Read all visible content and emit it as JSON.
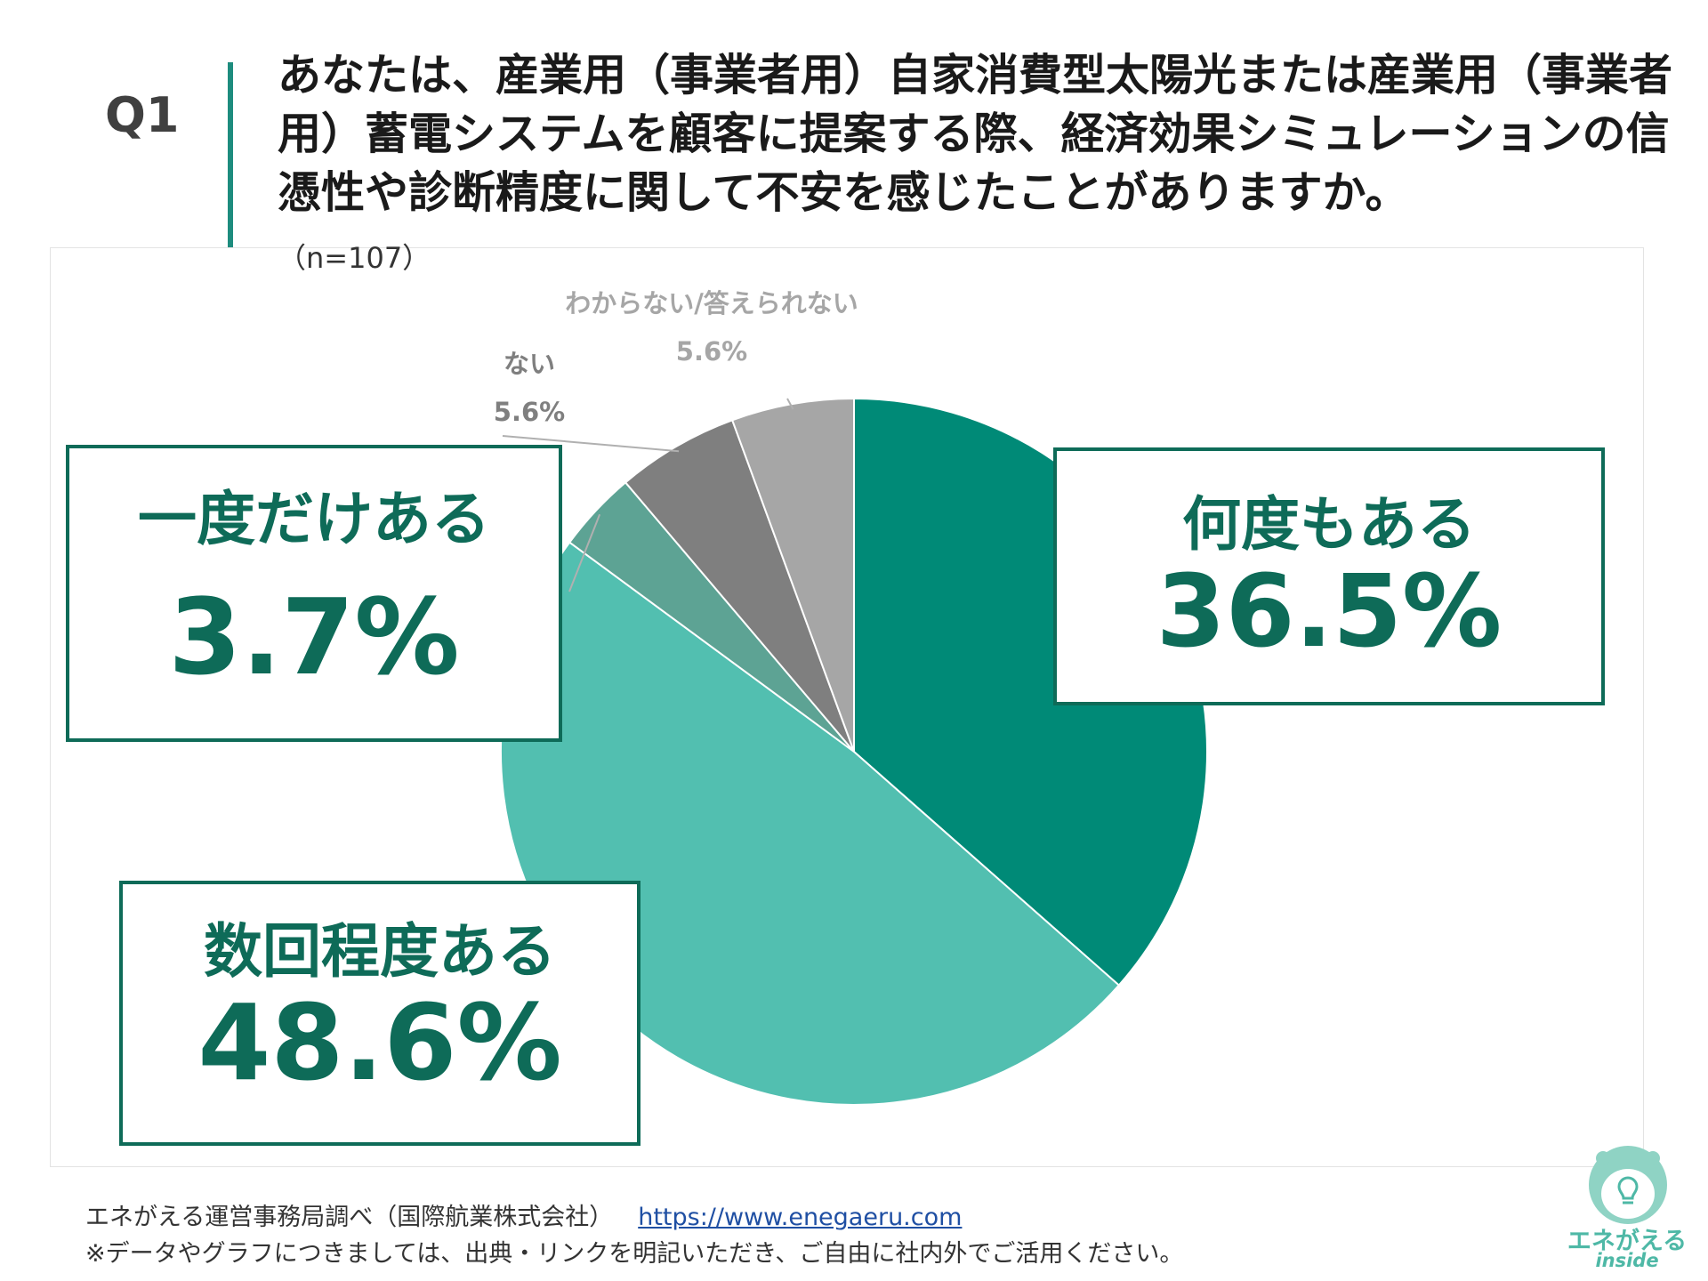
{
  "header": {
    "q_label": "Q1",
    "question": "あなたは、産業用（事業者用）自家消費型太陽光または産業用（事業者用）蓄電システムを顧客に提案する際、経済効果シミュレーションの信憑性や診断精度に関して不安を感じたことがありますか。",
    "sample": "（n=107）"
  },
  "chart_data": {
    "type": "pie",
    "categories": [
      "何度もある",
      "数回程度ある",
      "一度だけある",
      "ない",
      "わからない/答えられない"
    ],
    "values": [
      36.5,
      48.6,
      3.7,
      5.6,
      5.6
    ],
    "value_labels": [
      "36.5%",
      "48.6%",
      "3.7%",
      "5.6%",
      "5.6%"
    ],
    "colors": [
      "#008a77",
      "#52bfb0",
      "#5da394",
      "#7f7f7f",
      "#a6a6a6"
    ],
    "start": "12 o'clock",
    "direction": "clockwise"
  },
  "colors": {
    "accent": "#0e6b58",
    "bar": "#1e8c7e",
    "label_dark_gray": "#7f7f7f",
    "label_light_gray": "#a6a6a6"
  },
  "footer": {
    "source": "エネがえる運営事務局調べ（国際航業株式会社）",
    "url": "https://www.enegaeru.com",
    "note": "※データやグラフにつきましては、出典・リンクを明記いただき、ご自由に社内外でご活用ください。"
  },
  "logo": {
    "name": "エネがえる",
    "sub": "inside",
    "icon": "lightbulb-mascot-icon"
  }
}
